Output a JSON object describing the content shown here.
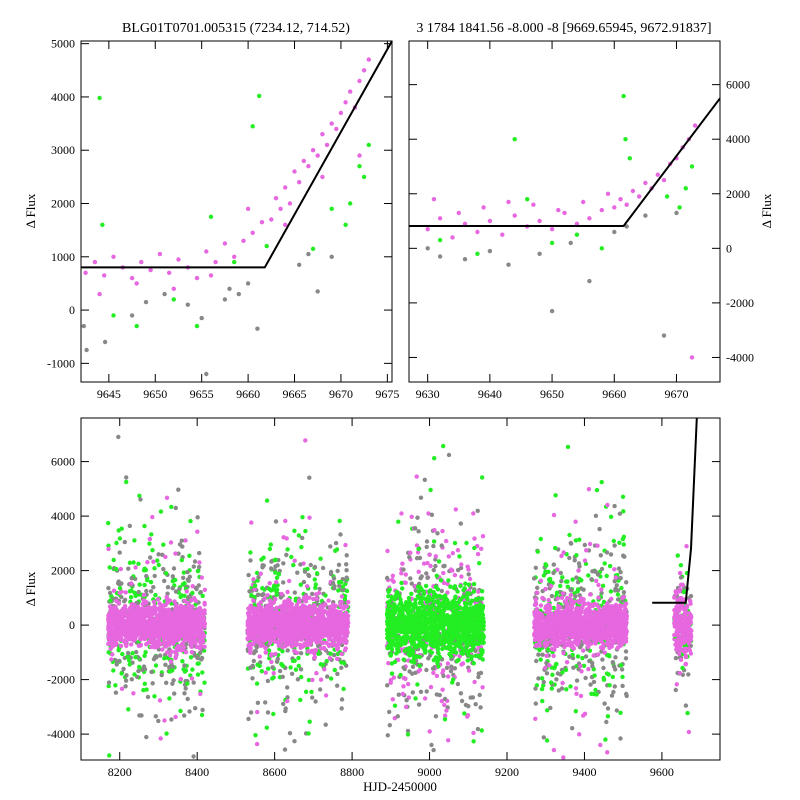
{
  "figure": {
    "colors": {
      "magenta": "#e667e0",
      "green": "#22ee22",
      "gray": "#888888",
      "model": "#000000"
    }
  },
  "chart_data": [
    {
      "id": "top-left",
      "type": "scatter",
      "title": "BLG01T0701.005315 (7234.12, 714.52)",
      "xlabel": "",
      "ylabel": "Δ Flux",
      "xlim": [
        9642,
        9675.5
      ],
      "ylim": [
        -1350,
        5050
      ],
      "xticks": [
        9645,
        9650,
        9655,
        9660,
        9665,
        9670,
        9675
      ],
      "yticks": [
        -1000,
        0,
        1000,
        2000,
        3000,
        4000,
        5000
      ],
      "ytick_side": "left",
      "model_line": {
        "x": [
          9642,
          9661.8,
          9675.5
        ],
        "y": [
          800,
          800,
          5050
        ]
      },
      "series": [
        {
          "name": "magenta",
          "color": "#e667e0",
          "x": [
            9642.5,
            9643.5,
            9644.5,
            9645.5,
            9646.5,
            9647.5,
            9648.5,
            9649.5,
            9650.5,
            9651.5,
            9652.5,
            9653.5,
            9654.5,
            9655.5,
            9656.5,
            9657.5,
            9658.5,
            9659.5,
            9660.5,
            9661.5,
            9662.5,
            9663.0,
            9663.5,
            9664.0,
            9664.5,
            9665.0,
            9665.5,
            9666.0,
            9666.5,
            9667.0,
            9667.5,
            9668.0,
            9668.5,
            9669.0,
            9669.5,
            9670.0,
            9670.5,
            9671.0,
            9671.5,
            9672.0,
            9672.5,
            9673.0,
            9644.0,
            9648.0,
            9652.0,
            9656.0,
            9660.0,
            9664.0,
            9668.0,
            9672.0
          ],
          "y": [
            700,
            900,
            650,
            1000,
            800,
            600,
            900,
            750,
            1050,
            700,
            950,
            800,
            600,
            1100,
            900,
            1250,
            1000,
            1300,
            1450,
            1650,
            1700,
            2100,
            1900,
            2300,
            2000,
            2600,
            2400,
            2800,
            2700,
            3000,
            2900,
            3300,
            3100,
            3500,
            3400,
            3700,
            3900,
            4100,
            3800,
            4300,
            4500,
            4700,
            300,
            500,
            400,
            650,
            1900,
            1600,
            2500,
            2900
          ]
        },
        {
          "name": "green",
          "color": "#22ee22",
          "x": [
            9644.0,
            9644.3,
            9645.5,
            9648.0,
            9652.0,
            9654.5,
            9656.0,
            9658.5,
            9660.5,
            9661.2,
            9662.0,
            9667.0,
            9669.0,
            9670.5,
            9671.0,
            9672.0,
            9672.5,
            9673.0
          ],
          "y": [
            3980,
            1600,
            -100,
            -300,
            200,
            -300,
            1750,
            900,
            3450,
            4020,
            1200,
            1150,
            1900,
            1600,
            2000,
            2700,
            2500,
            3100
          ]
        },
        {
          "name": "gray",
          "color": "#888888",
          "x": [
            9642.3,
            9642.6,
            9644.6,
            9647.5,
            9649.0,
            9651.0,
            9653.5,
            9655.0,
            9655.5,
            9657.5,
            9658.0,
            9659.0,
            9660.0,
            9661.0,
            9665.5,
            9666.5,
            9667.5,
            9669.0
          ],
          "y": [
            -300,
            -750,
            -600,
            -100,
            150,
            300,
            100,
            -150,
            -1200,
            200,
            400,
            300,
            500,
            -350,
            850,
            1050,
            350,
            1000
          ]
        }
      ]
    },
    {
      "id": "top-right",
      "type": "scatter",
      "title": "3 1784 1841.56 -8.000 -8 [9669.65945, 9672.91837]",
      "xlabel": "",
      "ylabel": "Δ Flux",
      "xlim": [
        9627,
        9677
      ],
      "ylim": [
        -4900,
        7600
      ],
      "xticks": [
        9630,
        9640,
        9650,
        9660,
        9670
      ],
      "yticks": [
        -4000,
        -2000,
        0,
        2000,
        4000,
        6000
      ],
      "ytick_side": "right",
      "model_line": {
        "x": [
          9627,
          9661.5,
          9677
        ],
        "y": [
          820,
          820,
          5500
        ]
      },
      "series": [
        {
          "name": "magenta",
          "color": "#e667e0",
          "x": [
            9630,
            9632,
            9634,
            9636,
            9638,
            9640,
            9642,
            9644,
            9646,
            9648,
            9650,
            9652,
            9654,
            9656,
            9658,
            9660,
            9661,
            9662,
            9663,
            9664,
            9665,
            9666,
            9667,
            9668,
            9669,
            9670,
            9671,
            9672,
            9673,
            9631,
            9635,
            9639,
            9643,
            9647,
            9651,
            9655,
            9659,
            9672.5
          ],
          "y": [
            700,
            1100,
            400,
            900,
            600,
            1000,
            500,
            1200,
            800,
            1000,
            700,
            1300,
            900,
            1100,
            1400,
            1500,
            1800,
            1600,
            2100,
            1900,
            2400,
            2200,
            2700,
            2500,
            3100,
            3300,
            3700,
            4000,
            4500,
            1800,
            1300,
            1500,
            1700,
            1600,
            1400,
            1700,
            2000,
            -4000
          ]
        },
        {
          "name": "green",
          "color": "#22ee22",
          "x": [
            9632,
            9638,
            9644,
            9646,
            9650,
            9654,
            9658,
            9661.5,
            9661.8,
            9662.5,
            9668.5,
            9670.5,
            9671.5,
            9672.5
          ],
          "y": [
            300,
            -200,
            4000,
            1800,
            200,
            500,
            0,
            5580,
            4000,
            3300,
            1900,
            1500,
            2200,
            3000
          ]
        },
        {
          "name": "gray",
          "color": "#888888",
          "x": [
            9630,
            9632,
            9636,
            9640,
            9643,
            9648,
            9650,
            9653,
            9656,
            9660,
            9662,
            9665,
            9668,
            9670
          ],
          "y": [
            0,
            -300,
            -400,
            -100,
            -600,
            -200,
            -2300,
            200,
            -1200,
            600,
            800,
            1200,
            -3200,
            1300
          ]
        }
      ]
    },
    {
      "id": "bottom",
      "type": "scatter",
      "title": "",
      "xlabel": "HJD-2450000",
      "ylabel": "Δ Flux",
      "xlim": [
        8100,
        9750
      ],
      "ylim": [
        -4950,
        7600
      ],
      "xticks": [
        8200,
        8400,
        8600,
        8800,
        9000,
        9200,
        9400,
        9600
      ],
      "yticks": [
        -4000,
        -2000,
        0,
        2000,
        4000,
        6000
      ],
      "ytick_side": "left",
      "model_line": {
        "x": [
          9575,
          9661.5,
          9675,
          9690
        ],
        "y": [
          820,
          820,
          2800,
          7600
        ]
      },
      "seasons": [
        {
          "name": "season-1",
          "xrange": [
            8170,
            8420
          ],
          "core_color": "#e667e0",
          "core_sigma": 380,
          "spread": 2500
        },
        {
          "name": "season-2",
          "xrange": [
            8530,
            8790
          ],
          "core_color": "#e667e0",
          "core_sigma": 400,
          "spread": 2400
        },
        {
          "name": "season-3",
          "xrange": [
            8890,
            9140
          ],
          "core_color": "#22ee22",
          "core_sigma": 550,
          "spread": 3000
        },
        {
          "name": "season-4",
          "xrange": [
            9270,
            9510
          ],
          "core_color": "#e667e0",
          "core_sigma": 400,
          "spread": 2600
        },
        {
          "name": "season-5",
          "xrange": [
            9632,
            9676
          ],
          "core_color": "#e667e0",
          "core_sigma": 600,
          "spread": 1800
        }
      ]
    }
  ]
}
